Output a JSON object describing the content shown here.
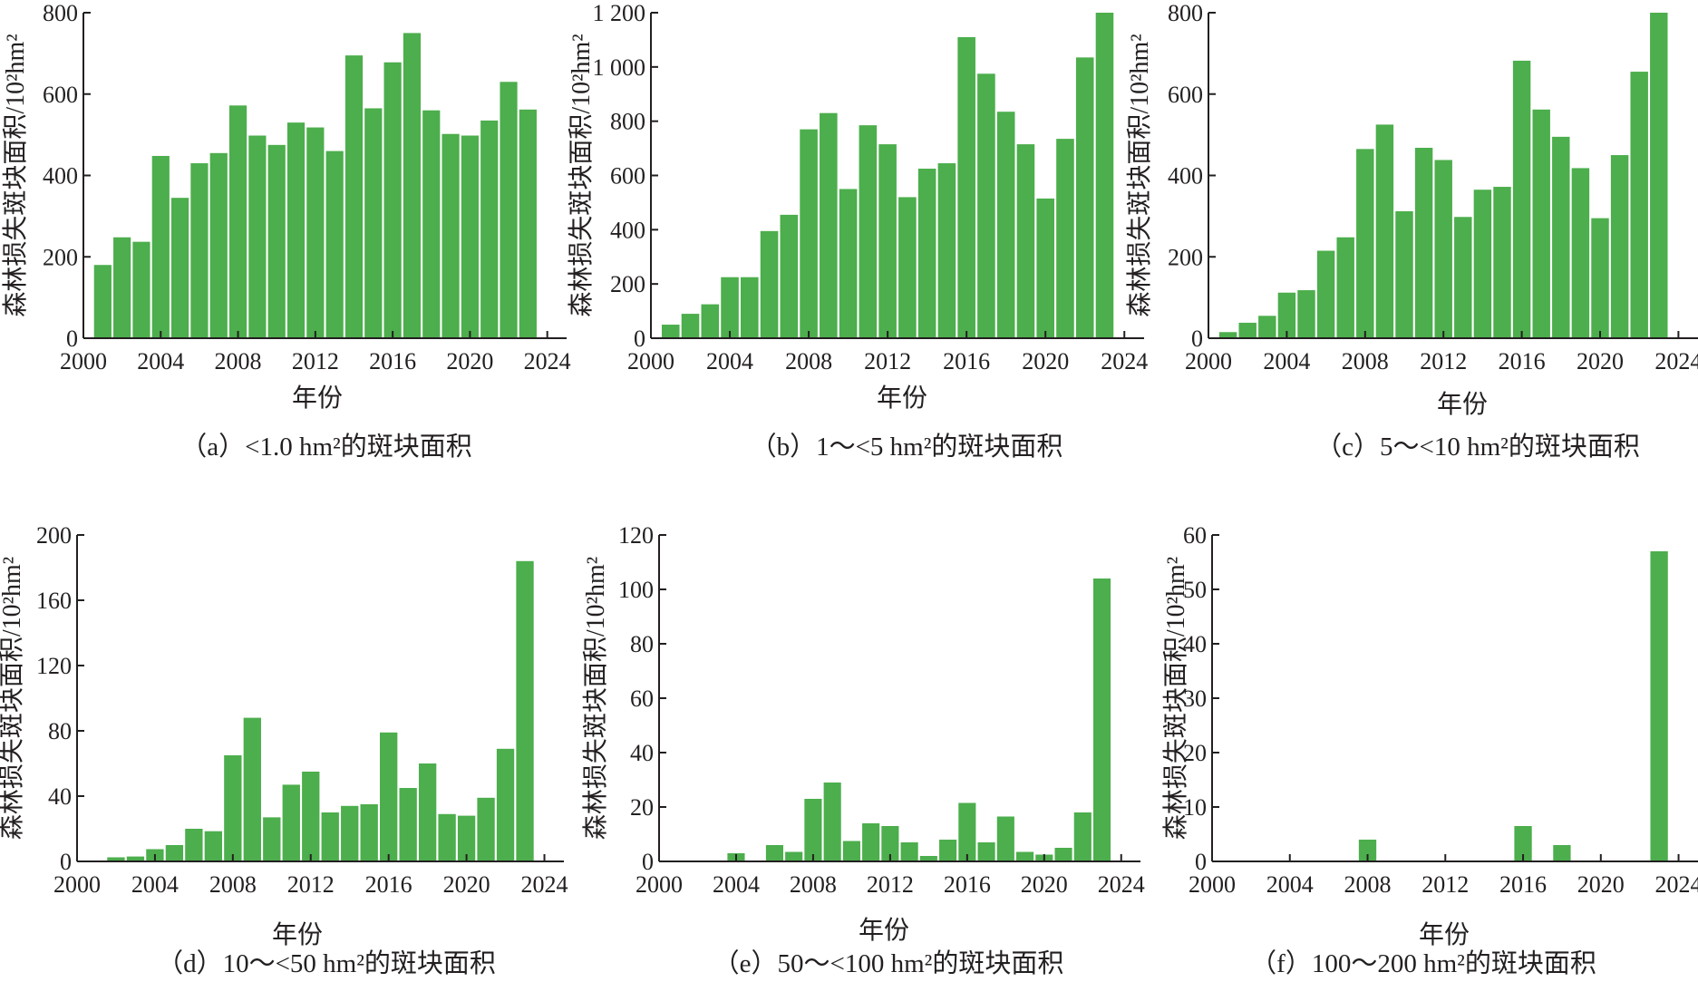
{
  "figure": {
    "bar_color": "#4cae4c",
    "axis_color": "#231f20"
  },
  "chart_data": [
    {
      "type": "bar",
      "caption": "（a）<1.0 hm²的斑块面积",
      "xlabel": "年份",
      "ylabel": "森林损失斑块面积/10²hm²",
      "xlim": [
        2000,
        2025
      ],
      "ylim": [
        0,
        800
      ],
      "xticks": [
        "2000",
        "2004",
        "2008",
        "2012",
        "2016",
        "2020",
        "2024"
      ],
      "yticks": [
        "0",
        "200",
        "400",
        "600",
        "800"
      ],
      "x": [
        2001,
        2002,
        2003,
        2004,
        2005,
        2006,
        2007,
        2008,
        2009,
        2010,
        2011,
        2012,
        2013,
        2014,
        2015,
        2016,
        2017,
        2018,
        2019,
        2020,
        2021,
        2022,
        2023
      ],
      "values": [
        180,
        248,
        237,
        448,
        345,
        430,
        455,
        572,
        498,
        475,
        530,
        518,
        460,
        695,
        565,
        678,
        750,
        560,
        502,
        498,
        535,
        630,
        562
      ]
    },
    {
      "type": "bar",
      "caption": "（b）1～<5 hm²的斑块面积",
      "xlabel": "年份",
      "ylabel": "森林损失斑块面积/10²hm²",
      "xlim": [
        2000,
        2025
      ],
      "ylim": [
        0,
        1200
      ],
      "xticks": [
        "2000",
        "2004",
        "2008",
        "2012",
        "2016",
        "2020",
        "2024"
      ],
      "yticks": [
        "0",
        "200",
        "400",
        "600",
        "800",
        "1 000",
        "1 200"
      ],
      "x": [
        2001,
        2002,
        2003,
        2004,
        2005,
        2006,
        2007,
        2008,
        2009,
        2010,
        2011,
        2012,
        2013,
        2014,
        2015,
        2016,
        2017,
        2018,
        2019,
        2020,
        2021,
        2022,
        2023
      ],
      "values": [
        50,
        90,
        125,
        225,
        225,
        395,
        455,
        770,
        830,
        550,
        785,
        715,
        520,
        625,
        645,
        1110,
        975,
        835,
        715,
        515,
        735,
        1035,
        1200
      ]
    },
    {
      "type": "bar",
      "caption": "（c）5～<10 hm²的斑块面积",
      "xlabel": "年份",
      "ylabel": "森林损失斑块面积/10²hm²",
      "xlim": [
        2000,
        2025
      ],
      "ylim": [
        0,
        800
      ],
      "xticks": [
        "2000",
        "2004",
        "2008",
        "2012",
        "2016",
        "2020",
        "2024"
      ],
      "yticks": [
        "0",
        "200",
        "400",
        "600",
        "800"
      ],
      "x": [
        2001,
        2002,
        2003,
        2004,
        2005,
        2006,
        2007,
        2008,
        2009,
        2010,
        2011,
        2012,
        2013,
        2014,
        2015,
        2016,
        2017,
        2018,
        2019,
        2020,
        2021,
        2022,
        2023
      ],
      "values": [
        15,
        38,
        55,
        112,
        118,
        215,
        248,
        465,
        525,
        312,
        468,
        438,
        298,
        365,
        372,
        682,
        562,
        495,
        418,
        295,
        450,
        655,
        800
      ]
    },
    {
      "type": "bar",
      "caption": "（d）10～<50 hm²的斑块面积",
      "xlabel": "年份",
      "ylabel": "森林损失斑块面积/10²hm²",
      "xlim": [
        2000,
        2025
      ],
      "ylim": [
        0,
        200
      ],
      "xticks": [
        "2000",
        "2004",
        "2008",
        "2012",
        "2016",
        "2020",
        "2024"
      ],
      "yticks": [
        "0",
        "40",
        "80",
        "120",
        "160",
        "200"
      ],
      "x": [
        2001,
        2002,
        2003,
        2004,
        2005,
        2006,
        2007,
        2008,
        2009,
        2010,
        2011,
        2012,
        2013,
        2014,
        2015,
        2016,
        2017,
        2018,
        2019,
        2020,
        2021,
        2022,
        2023
      ],
      "values": [
        0.5,
        2.5,
        3,
        7.5,
        10,
        20,
        18.5,
        65,
        88,
        27,
        47,
        55,
        30,
        34,
        35,
        79,
        45,
        60,
        29,
        28,
        39,
        69,
        184
      ]
    },
    {
      "type": "bar",
      "caption": "（e）50～<100 hm²的斑块面积",
      "xlabel": "年份",
      "ylabel": "森林损失斑块面积/10²hm²",
      "xlim": [
        2000,
        2025
      ],
      "ylim": [
        0,
        120
      ],
      "xticks": [
        "2000",
        "2004",
        "2008",
        "2012",
        "2016",
        "2020",
        "2024"
      ],
      "yticks": [
        "0",
        "20",
        "40",
        "60",
        "80",
        "100",
        "120"
      ],
      "x": [
        2001,
        2002,
        2003,
        2004,
        2005,
        2006,
        2007,
        2008,
        2009,
        2010,
        2011,
        2012,
        2013,
        2014,
        2015,
        2016,
        2017,
        2018,
        2019,
        2020,
        2021,
        2022,
        2023
      ],
      "values": [
        0,
        0,
        0,
        3,
        0,
        6,
        3.5,
        23,
        29,
        7.5,
        14,
        13,
        7,
        2,
        8,
        21.5,
        7,
        16.5,
        3.5,
        2.5,
        5,
        18,
        104
      ]
    },
    {
      "type": "bar",
      "caption": "（f）100～200 hm²的斑块面积",
      "xlabel": "年份",
      "ylabel": "森林损失斑块面积/10²hm²",
      "xlim": [
        2000,
        2025
      ],
      "ylim": [
        0,
        60
      ],
      "xticks": [
        "2000",
        "2004",
        "2008",
        "2012",
        "2016",
        "2020",
        "2024"
      ],
      "yticks": [
        "0",
        "10",
        "20",
        "30",
        "40",
        "50",
        "60"
      ],
      "x": [
        2001,
        2002,
        2003,
        2004,
        2005,
        2006,
        2007,
        2008,
        2009,
        2010,
        2011,
        2012,
        2013,
        2014,
        2015,
        2016,
        2017,
        2018,
        2019,
        2020,
        2021,
        2022,
        2023
      ],
      "values": [
        0,
        0,
        0,
        0,
        0,
        0,
        0,
        4,
        0,
        0,
        0,
        0,
        0,
        0,
        0,
        6.5,
        0,
        3,
        0,
        0,
        0,
        0,
        57
      ]
    }
  ]
}
